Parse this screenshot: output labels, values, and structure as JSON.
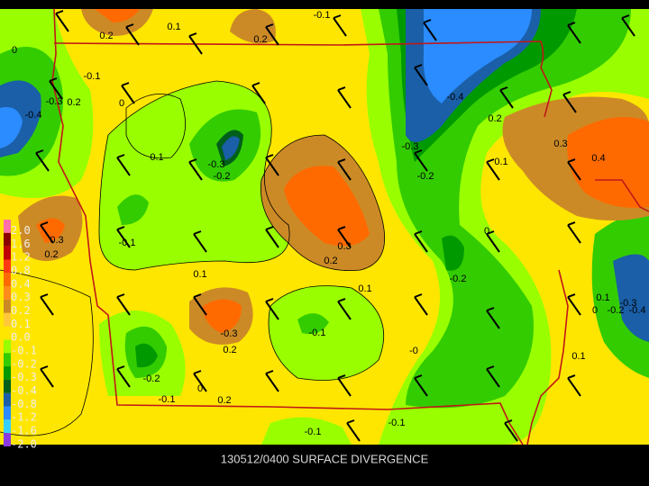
{
  "title": "130512/0400 SURFACE DIVERGENCE",
  "legend": {
    "labels": [
      "2.0",
      "1.6",
      "1.2",
      "0.8",
      "0.4",
      "0.3",
      "0.2",
      "0.1",
      "0.0",
      "-0.1",
      "-0.2",
      "-0.3",
      "-0.4",
      "-0.8",
      "-1.2",
      "-1.6",
      "-2.0"
    ],
    "colors": [
      "#ff6fa8",
      "#8b0000",
      "#c00000",
      "#ff3a10",
      "#ff6a00",
      "#ff8c1a",
      "#cc8a26",
      "#ffc83a",
      "#ffe600",
      "#99ff00",
      "#33cc00",
      "#009a00",
      "#005f1a",
      "#1a5fa8",
      "#2a8cff",
      "#36d0ff",
      "#8a3ae0"
    ]
  },
  "contour_labels": [
    "-0.1",
    "0.1",
    "0.2",
    "0.2",
    "0",
    "-0.1",
    "-0.4",
    "-0.3",
    "0.2",
    "0",
    "-0.4",
    "0.2",
    "-0.3",
    "0.3",
    "0.4",
    "0.1",
    "-0.3",
    "-0.2",
    "0.1",
    "-0.2",
    "0.3",
    "0.2",
    "-0.1",
    "0",
    "0.3",
    "0.2",
    "0.1",
    "0.1",
    "-0.2",
    "0.1",
    "-0.3",
    "0",
    "-0.2",
    "-0.4",
    "-0.3",
    "-0.1",
    "0.2",
    "-0",
    "0.1",
    "-0.2",
    "-0.1",
    "0",
    "0.2",
    "-0.1",
    "-0.1"
  ]
}
